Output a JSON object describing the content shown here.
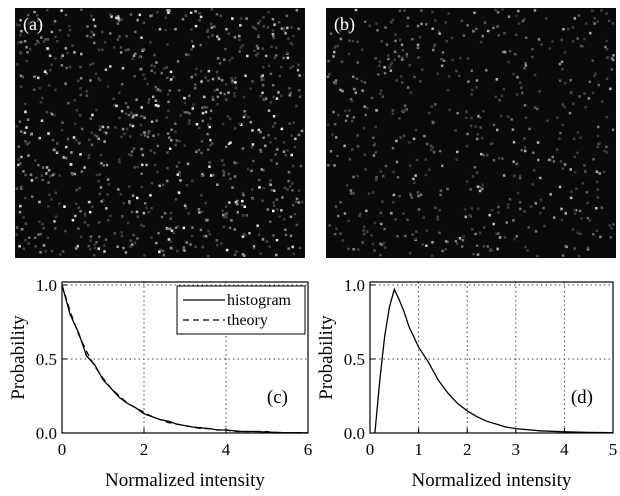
{
  "panels": [
    {
      "label": "(a)"
    },
    {
      "label": "(b)"
    }
  ],
  "chart_data": [
    {
      "type": "line",
      "annotation": "(c)",
      "xlabel": "Normalized intensity",
      "ylabel": "Probability",
      "xlim": [
        0,
        6
      ],
      "xticks": [
        0,
        2,
        4,
        6
      ],
      "ylim": [
        0,
        1.02
      ],
      "yticks": [
        {
          "value": 0,
          "label": "0.0"
        },
        {
          "value": 0.5,
          "label": "0.5"
        },
        {
          "value": 1,
          "label": "1.0"
        }
      ],
      "grid": true,
      "legend": "upper right",
      "x": [
        0,
        0.2,
        0.4,
        0.6,
        0.8,
        1,
        1.2,
        1.4,
        1.6,
        1.8,
        2,
        2.2,
        2.4,
        2.6,
        2.8,
        3,
        3.2,
        3.4,
        3.6,
        3.8,
        4,
        4.2,
        4.4,
        4.6,
        4.8,
        5,
        5.2,
        5.4,
        5.6,
        5.8,
        6
      ],
      "series": [
        {
          "name": "histogram",
          "color": "#000000",
          "dashed": false,
          "values": [
            1,
            0.8,
            0.68,
            0.52,
            0.46,
            0.36,
            0.3,
            0.24,
            0.2,
            0.17,
            0.13,
            0.11,
            0.09,
            0.08,
            0.06,
            0.05,
            0.04,
            0.035,
            0.03,
            0.02,
            0.02,
            0.015,
            0.01,
            0.01,
            0.01,
            0.005,
            0.005,
            0.003,
            0.002,
            0.002,
            0.001
          ]
        },
        {
          "name": "theory",
          "color": "#000000",
          "dashed": true,
          "values": [
            1,
            0.82,
            0.67,
            0.55,
            0.45,
            0.37,
            0.3,
            0.25,
            0.2,
            0.17,
            0.14,
            0.11,
            0.09,
            0.07,
            0.06,
            0.05,
            0.04,
            0.03,
            0.03,
            0.02,
            0.02,
            0.01,
            0.01,
            0.01,
            0.01,
            0.01,
            0,
            0,
            0,
            0,
            0
          ]
        }
      ]
    },
    {
      "type": "line",
      "annotation": "(d)",
      "xlabel": "Normalized intensity",
      "ylabel": "Probability",
      "xlim": [
        0,
        5
      ],
      "xticks": [
        0,
        1,
        2,
        3,
        4,
        5
      ],
      "ylim": [
        0,
        1.02
      ],
      "yticks": [
        {
          "value": 0,
          "label": "0.0"
        },
        {
          "value": 0.5,
          "label": "0.5"
        },
        {
          "value": 1,
          "label": "1.0"
        }
      ],
      "grid": true,
      "x": [
        0.1,
        0.2,
        0.3,
        0.4,
        0.5,
        0.6,
        0.7,
        0.8,
        1,
        1.2,
        1.4,
        1.6,
        1.8,
        2,
        2.2,
        2.4,
        2.6,
        2.8,
        3,
        3.5,
        4,
        4.5,
        5
      ],
      "series": [
        {
          "color": "#000000",
          "dashed": false,
          "values": [
            0,
            0.35,
            0.65,
            0.85,
            0.97,
            0.9,
            0.82,
            0.72,
            0.58,
            0.48,
            0.36,
            0.27,
            0.2,
            0.15,
            0.11,
            0.08,
            0.06,
            0.04,
            0.03,
            0.015,
            0.008,
            0.004,
            0.002
          ]
        }
      ]
    }
  ]
}
